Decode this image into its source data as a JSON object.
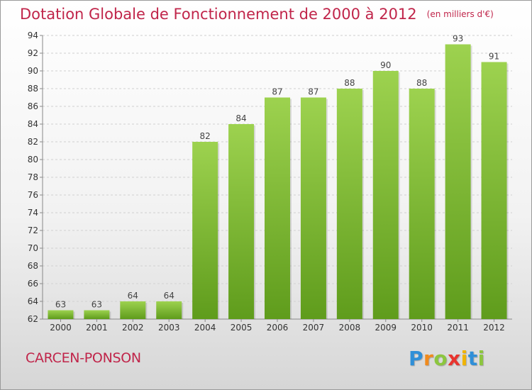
{
  "title": "Dotation Globale de Fonctionnement de 2000 à 2012",
  "unit_label": "(en milliers d'€)",
  "commune": "CARCEN-PONSON",
  "logo": {
    "text": "Proxiti",
    "letters": [
      {
        "char": "P",
        "color": "#2f8fd8"
      },
      {
        "char": "r",
        "color": "#f08a1d"
      },
      {
        "char": "o",
        "color": "#8cc63f"
      },
      {
        "char": "x",
        "color": "#e8342e"
      },
      {
        "char": "i",
        "color": "#f0b400"
      },
      {
        "char": "t",
        "color": "#2f8fd8"
      },
      {
        "char": "i",
        "color": "#8cc63f"
      }
    ]
  },
  "chart_data": {
    "type": "bar",
    "categories": [
      "2000",
      "2001",
      "2002",
      "2003",
      "2004",
      "2005",
      "2006",
      "2007",
      "2008",
      "2009",
      "2010",
      "2011",
      "2012"
    ],
    "values": [
      63,
      63,
      64,
      64,
      82,
      84,
      87,
      87,
      88,
      90,
      88,
      93,
      91
    ],
    "ylim": [
      62,
      94
    ],
    "yticks": [
      62,
      64,
      66,
      68,
      70,
      72,
      74,
      76,
      78,
      80,
      82,
      84,
      86,
      88,
      90,
      92,
      94
    ],
    "grid": true,
    "bar_color_top": "#9dd24f",
    "bar_color_bottom": "#5f9c1c"
  }
}
